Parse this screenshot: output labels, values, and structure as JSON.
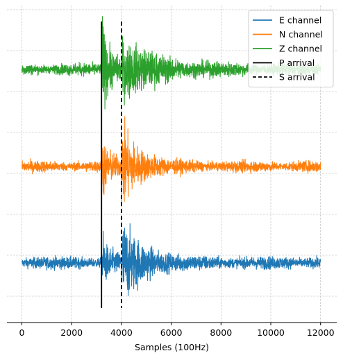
{
  "chart_data": {
    "type": "line",
    "title": "",
    "xlabel": "Samples (100Hz)",
    "ylabel": "",
    "xlim": [
      -600,
      12650
    ],
    "xticks": [
      0,
      2000,
      4000,
      6000,
      8000,
      10000,
      12000
    ],
    "xtick_labels": [
      "0",
      "2000",
      "4000",
      "6000",
      "8000",
      "10000",
      "12000"
    ],
    "grid": true,
    "legend_position": "top-right",
    "x_range": [
      0,
      12000
    ],
    "p_arrival": 3200,
    "s_arrival": 4000,
    "series": [
      {
        "name": "E channel",
        "color": "#1f77b4",
        "noise_level": 0.09,
        "p_amplitude": 1.0,
        "s_amplitude": 1.6,
        "coda_decay_samples": 900
      },
      {
        "name": "N channel",
        "color": "#ff7f0e",
        "noise_level": 0.07,
        "p_amplitude": 1.0,
        "s_amplitude": 1.6,
        "coda_decay_samples": 700
      },
      {
        "name": "Z channel",
        "color": "#2ca02c",
        "noise_level": 0.06,
        "p_amplitude": 1.4,
        "s_amplitude": 0.9,
        "coda_decay_samples": 1400
      }
    ],
    "vertical_lines": [
      {
        "name": "P arrival",
        "x": 3200,
        "color": "#000000",
        "style": "solid"
      },
      {
        "name": "S arrival",
        "x": 4000,
        "color": "#000000",
        "style": "dashed"
      }
    ]
  }
}
